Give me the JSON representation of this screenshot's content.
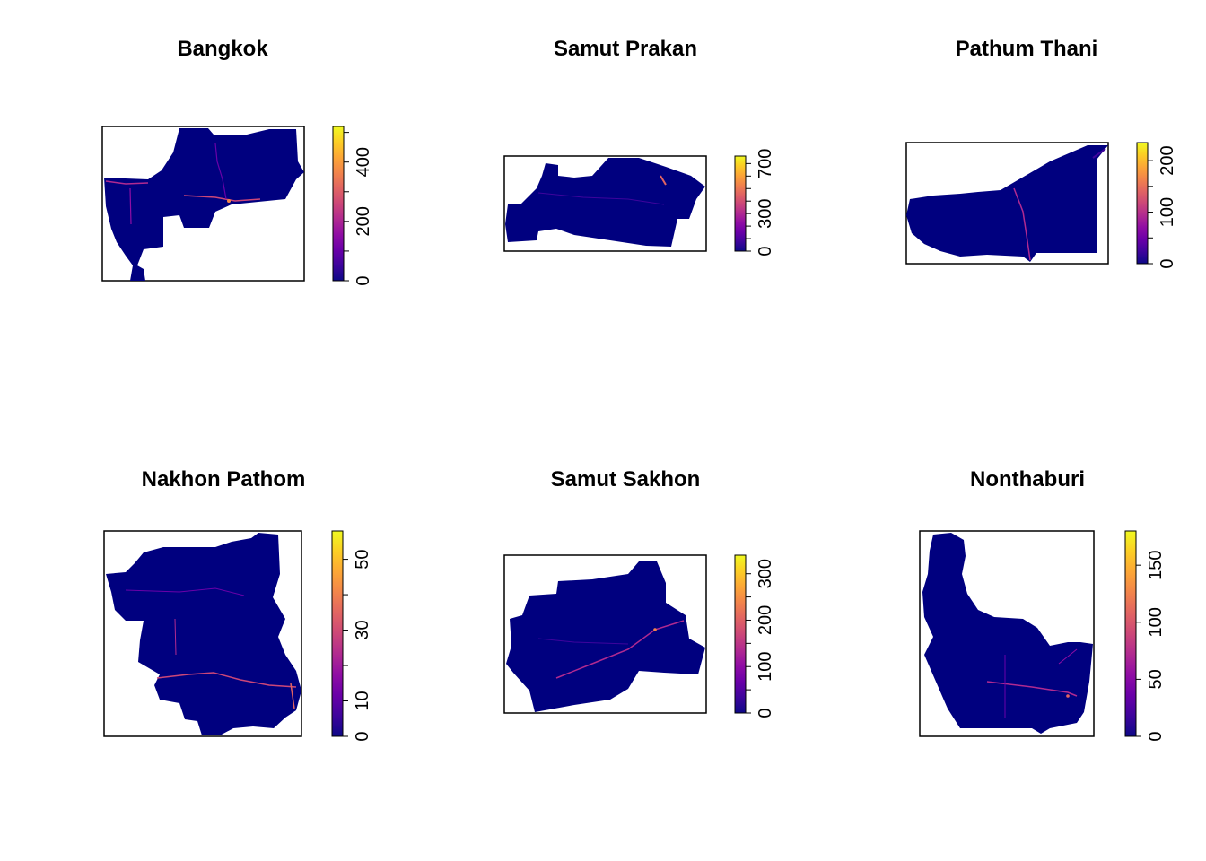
{
  "colors": {
    "background": "#ffffff",
    "raster_base": "#00007F",
    "scale": [
      "#0D0887",
      "#3E049C",
      "#6A00A8",
      "#900DA4",
      "#B12A90",
      "#CC4778",
      "#E16462",
      "#F2844B",
      "#FCA636",
      "#FCCE25",
      "#F0F921"
    ]
  },
  "chart_data": [
    {
      "type": "heatmap",
      "title": "Bangkok",
      "legend_placement": "right",
      "legend_ticks": [
        0,
        200,
        400
      ],
      "legend_minor_ticks": [
        0,
        100,
        200,
        300,
        400,
        500
      ],
      "value_range": [
        0,
        520
      ]
    },
    {
      "type": "heatmap",
      "title": "Samut Prakan",
      "legend_placement": "right",
      "legend_ticks": [
        0,
        300,
        700
      ],
      "legend_minor_ticks": [
        0,
        100,
        200,
        300,
        400,
        500,
        600,
        700
      ],
      "value_range": [
        0,
        760
      ]
    },
    {
      "type": "heatmap",
      "title": "Pathum Thani",
      "legend_placement": "right",
      "legend_ticks": [
        0,
        100,
        200
      ],
      "legend_minor_ticks": [
        0,
        50,
        100,
        150,
        200
      ],
      "value_range": [
        0,
        235
      ]
    },
    {
      "type": "heatmap",
      "title": "Nakhon Pathom",
      "legend_placement": "right",
      "legend_ticks": [
        0,
        10,
        30,
        50
      ],
      "legend_minor_ticks": [
        0,
        10,
        20,
        30,
        40,
        50
      ],
      "value_range": [
        0,
        58
      ]
    },
    {
      "type": "heatmap",
      "title": "Samut Sakhon",
      "legend_placement": "right",
      "legend_ticks": [
        0,
        100,
        200,
        300
      ],
      "legend_minor_ticks": [
        0,
        50,
        100,
        150,
        200,
        250,
        300
      ],
      "value_range": [
        0,
        340
      ]
    },
    {
      "type": "heatmap",
      "title": "Nonthaburi",
      "legend_placement": "right",
      "legend_ticks": [
        0,
        50,
        100,
        150
      ],
      "legend_minor_ticks": [
        0,
        50,
        100,
        150
      ],
      "value_range": [
        0,
        180
      ]
    }
  ]
}
